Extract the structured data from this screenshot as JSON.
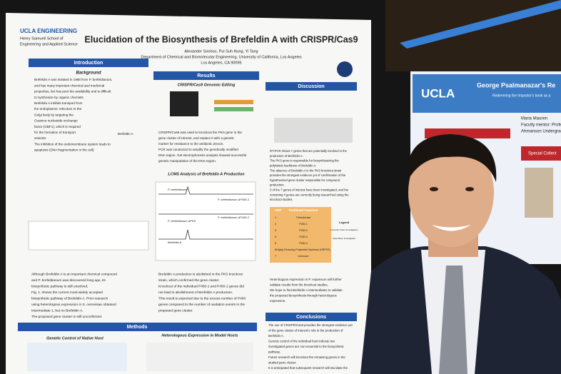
{
  "poster": {
    "logo": [
      "UCLA ENGINEERING",
      "Henry Samueli School of",
      "Engineering and Applied Science"
    ],
    "title": "Elucidation of the Biosynthesis of Brefeldin A with CRISPR/Cas9",
    "authors": "Alexander Soohoo, Pui Suh Hung, Yi Tang",
    "affiliation": "Department of Chemical and Biomolecular Engineering, University of California, Los Angeles",
    "address": "Los Angeles, CA 90095",
    "introduction": {
      "heading": "Introduction",
      "subheading": "Background",
      "lines": [
        "Brefeldin A was isolated in 1958 from P. brefeldianum,",
        "and has many important chemical and medicinal",
        "properties, but has poor bio availability and is difficult",
        "to synthesize by organic chemists",
        "Brefeldin A inhibits transport from",
        "the endoplasmic reticulum to the",
        "Golgi body by targeting the",
        "Guanine nucleotide exchange",
        "factor (GBF1), which is required",
        "for the formation of transport",
        "vesicles",
        "The inhibition of the endomembrane system leads to",
        "apoptosis (DNA fragmentation in the cell)"
      ],
      "molecule": "Brefeldin A",
      "lines2": [
        "Although Brefeldin A is an important chemical compound",
        "and P. brefeldianum was discovered long ago, its",
        "biosynthetic pathway is still unsolved.",
        "Fig. 1. shows the current most-widely accepted",
        "biosynthetic pathway of Brefeldin A. Prior research",
        "using heterologous expression in S. cerevisiae obtained",
        "Intermediate 1, but no Brefeldin A.",
        "The proposed gene cluster is still unconfirmed."
      ]
    },
    "results": {
      "heading": "Results",
      "panel1": "CRISPR/Cas9 Genomic Editing",
      "lines1": [
        "CRISPR/Cas9 was used to knockout the PKS gene in the",
        "gene cluster of interest, and replace it with a genetic",
        "marker for resistance to the antibiotic Zeocin.",
        "PCR was conducted to amplify the genetically modified",
        "DNA region. Gel electrophoresis analysis showed successful",
        "genetic manipulation of the DNA region."
      ],
      "panel2": "LCMS Analysis of Brefeldin A Production",
      "traces": [
        "P. brefeldianum",
        "P. brefeldianum ΔPKS",
        "Brefeldin A",
        "P. brefeldianum ΔP450-1",
        "P. brefeldianum ΔP450-2"
      ],
      "lines2": [
        "Brefeldin A production is abolished in the PKS knockout",
        "strain, which confirmed the gene cluster.",
        "Knockout of the individual P450-1 and P450-2 genes did",
        "not lead to abolishment of Brefeldin A production.",
        "This result is expected due to the excess number of P450",
        "genes compared to the number of oxidation events in the",
        "proposed gene cluster."
      ]
    },
    "discussion": {
      "heading": "Discussion",
      "lines": [
        "RT-PCR shows 7 genes that are potentially involved in the",
        "production of Brefeldin A.",
        "The PKS gene is responsible for biosynthesizing the",
        "polyketide backbone of Brefeldin A.",
        "The absence of Brefeldin A in the PKS knockout strain",
        "provides the strongest evidence yet of confirmation of the",
        "hypothesized gene cluster responsible for compound",
        "production.",
        "3 of the 7 genes of interest have been investigated, and the",
        "remaining 4 genes are currently being researched using the",
        "knockout studies."
      ],
      "table": {
        "header": [
          "ORF",
          "Predicted Function"
        ],
        "rows": [
          [
            "1",
            "Thioesterase"
          ],
          [
            "2",
            "P450-1"
          ],
          [
            "3",
            "P450-2"
          ],
          [
            "4",
            "P450-3"
          ],
          [
            "5",
            "P450-4"
          ],
          [
            "6",
            "Highly Reducing Polyketide Synthase (HRPKS)"
          ],
          [
            "7",
            "Unknown"
          ]
        ]
      },
      "legend": [
        "Legend",
        "Currently Under Investigation",
        "Have Been Investigated"
      ],
      "lines2": [
        "Heterologous expression in P. expansum will further",
        "validate results from the knockout studies.",
        "We hope to find Brefeldin A intermediates to validate",
        "the proposed biosynthesis through heterologous",
        "expression."
      ]
    },
    "methods": {
      "heading": "Methods",
      "panel1": "Genetic Control of Native Host",
      "panel2": "Heterologous Expression in Model Hosts"
    },
    "conclusions": {
      "heading": "Conclusions",
      "lines": [
        "The use of CRISPR/Cas9 provides the strongest evidence yet",
        "of the gene cluster of interest's role in the production of",
        "Brefeldin A.",
        "Genetic control of the individual host indicate two",
        "investigated genes are non-essential to the biosynthetic",
        "pathway.",
        "Future research will knockout the remaining genes in the",
        "studied gene cluster.",
        "It is anticipated that subsequent research will elucidate the"
      ]
    }
  },
  "background_poster": {
    "logo": "UCLA",
    "title": "George Psalmanazar's Re",
    "subtitle": "Redeeming the Impostor's book as a",
    "lines": [
      "Maria Mauren",
      "Faculty mentor: Profes",
      "Ahmanson Undergraduate Seminar at the W"
    ],
    "box": "Special Collect"
  }
}
